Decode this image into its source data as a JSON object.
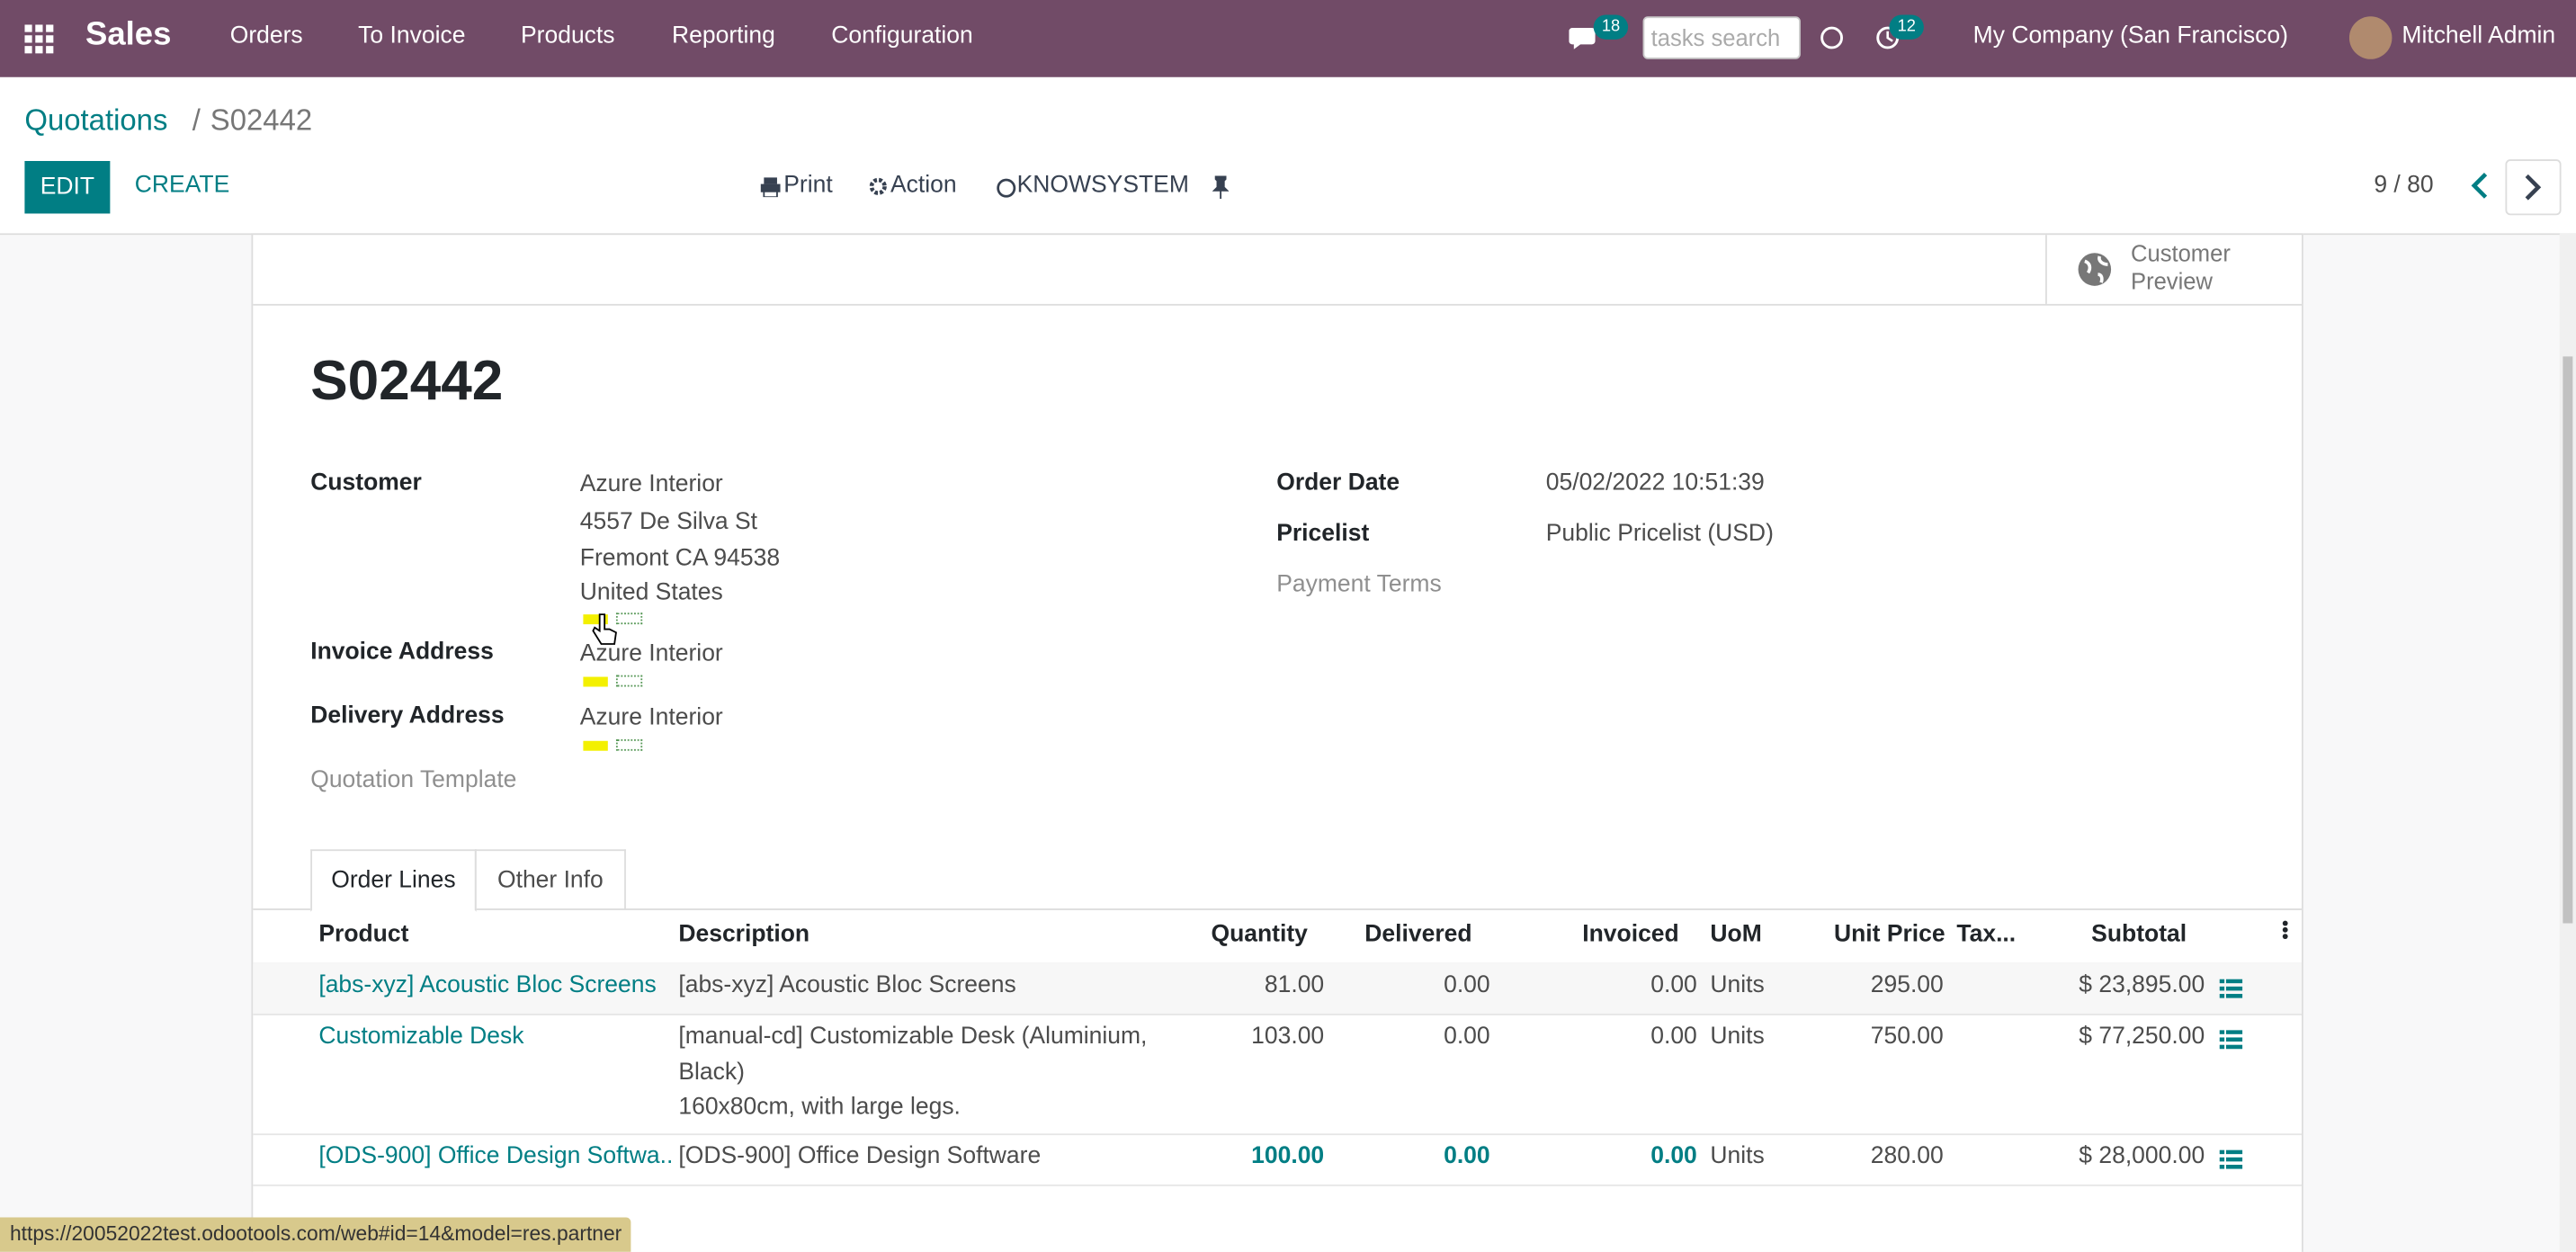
{
  "navbar": {
    "app": "Sales",
    "menu": [
      "Orders",
      "To Invoice",
      "Products",
      "Reporting",
      "Configuration"
    ],
    "messages_badge": "18",
    "search_placeholder": "tasks search",
    "activity_badge": "12",
    "company": "My Company (San Francisco)",
    "user": "Mitchell Admin"
  },
  "breadcrumb": {
    "parent": "Quotations",
    "separator": "/",
    "current": "S02442"
  },
  "buttons": {
    "edit": "EDIT",
    "create": "CREATE",
    "print": "Print",
    "action": "Action",
    "knowsystem": "KNOWSYSTEM",
    "pager": "9 / 80"
  },
  "smart_button": {
    "line1": "Customer",
    "line2": "Preview"
  },
  "form": {
    "name": "S02442",
    "customer": {
      "label": "Customer",
      "value": "Azure Interior",
      "address": [
        "4557 De Silva St",
        "Fremont CA 94538",
        "United States"
      ]
    },
    "invoice_address": {
      "label": "Invoice Address",
      "value": "Azure Interior"
    },
    "delivery_address": {
      "label": "Delivery Address",
      "value": "Azure Interior"
    },
    "quotation_template": {
      "label": "Quotation Template"
    },
    "order_date": {
      "label": "Order Date",
      "value": "05/02/2022 10:51:39"
    },
    "pricelist": {
      "label": "Pricelist",
      "value": "Public Pricelist (USD)"
    },
    "payment_terms": {
      "label": "Payment Terms"
    }
  },
  "tabs": [
    "Order Lines",
    "Other Info"
  ],
  "table": {
    "headers": [
      "Product",
      "Description",
      "Quantity",
      "Delivered",
      "Invoiced",
      "UoM",
      "Unit Price",
      "Tax...",
      "Subtotal"
    ],
    "rows": [
      [
        "[abs-xyz] Acoustic Bloc Screens",
        "[abs-xyz] Acoustic Bloc Screens",
        "81.00",
        "0.00",
        "0.00",
        "Units",
        "295.00",
        "",
        "$ 23,895.00"
      ],
      [
        "Customizable Desk",
        "[manual-cd] Customizable Desk (Aluminium, Black)\n160x80cm, with large legs.",
        "103.00",
        "0.00",
        "0.00",
        "Units",
        "750.00",
        "",
        "$ 77,250.00"
      ],
      [
        "[ODS-900] Office Design Softwa...",
        "[ODS-900] Office Design Software",
        "100.00",
        "0.00",
        "0.00",
        "Units",
        "280.00",
        "",
        "$ 28,000.00"
      ]
    ]
  },
  "status_url": "https://20052022test.odootools.com/web#id=14&model=res.partner"
}
